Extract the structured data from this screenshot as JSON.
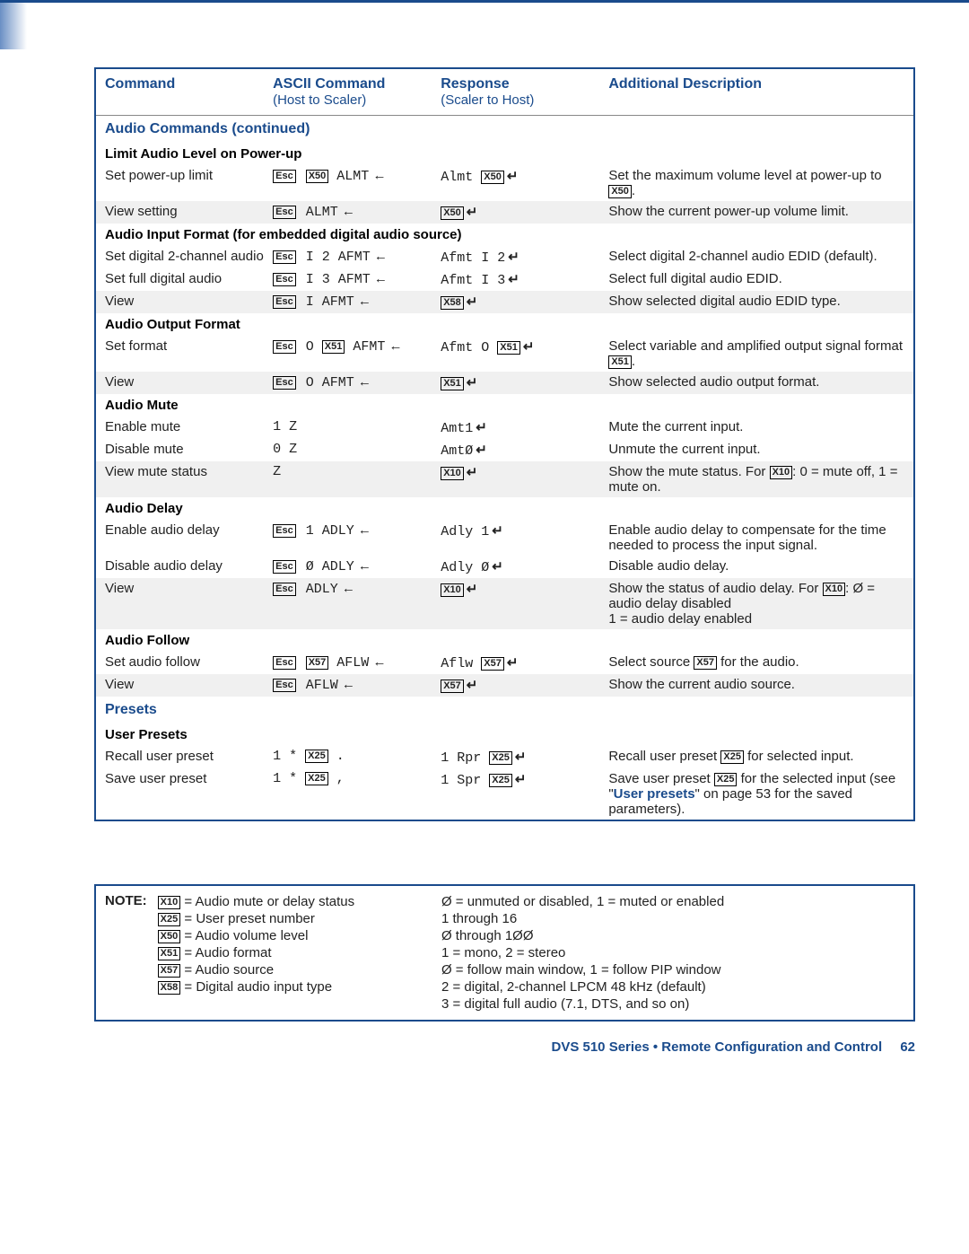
{
  "header": {
    "col1": "Command",
    "col2a": "ASCII Command",
    "col2b": "(Host to Scaler)",
    "col3a": "Response",
    "col3b": "(Scaler to Host)",
    "col4": "Additional Description"
  },
  "sections": {
    "audio_cont": "Audio Commands (continued)",
    "limit": "Limit Audio Level on Power-up",
    "aif": "Audio Input Format (for embedded digital audio source)",
    "aof": "Audio Output Format",
    "mute": "Audio Mute",
    "delay": "Audio Delay",
    "follow": "Audio Follow",
    "presets": "Presets",
    "user_presets": "User Presets"
  },
  "rows": {
    "set_pwr": {
      "cmd": "Set power-up limit",
      "d1": "Set the maximum volume level at power-up to ",
      "d2": "."
    },
    "view_set": {
      "cmd": "View setting",
      "d": "Show the current power-up volume limit."
    },
    "set2ch": {
      "cmd": "Set digital 2-channel audio",
      "d": "Select digital 2-channel audio EDID (default)."
    },
    "setfull": {
      "cmd": "Set full digital audio",
      "d": "Select full digital audio EDID."
    },
    "view_aif": {
      "cmd": "View",
      "d": "Show selected digital audio EDID type."
    },
    "setfmt": {
      "cmd": "Set format",
      "d1": "Select variable and amplified output signal format ",
      "d2": "."
    },
    "view_aof": {
      "cmd": "View",
      "d": "Show selected audio output format."
    },
    "en_mute": {
      "cmd": "Enable mute",
      "a": "1 Z",
      "d": "Mute the current input."
    },
    "dis_mute": {
      "cmd": "Disable mute",
      "a": "0 Z",
      "d": "Unmute the current input."
    },
    "view_mute": {
      "cmd": "View mute status",
      "a": "Z",
      "d1": "Show the mute status. For ",
      "d2": ": 0 = mute off, 1 = mute on."
    },
    "en_delay": {
      "cmd": "Enable audio delay",
      "d": "Enable audio delay to compensate for the time needed to process the input signal."
    },
    "dis_delay": {
      "cmd": "Disable audio delay",
      "d": "Disable audio delay."
    },
    "view_delay": {
      "cmd": "View",
      "d1": "Show the status of audio delay. For ",
      "d2": ": Ø = audio delay disabled",
      "d3": "1 = audio delay enabled"
    },
    "set_follow": {
      "cmd": "Set audio follow",
      "d1": "Select source ",
      "d2": " for the audio."
    },
    "view_follow": {
      "cmd": "View",
      "d": "Show the current audio source."
    },
    "recall": {
      "cmd": "Recall user preset",
      "d1": "Recall user preset ",
      "d2": " for selected input."
    },
    "save": {
      "cmd": "Save user preset",
      "d1": "Save user preset ",
      "d2": " for the selected input (see \"",
      "link": "User presets",
      "d3": "\" on page 53 for the saved parameters)."
    }
  },
  "note": {
    "label": "NOTE:",
    "left": {
      "x10": " = Audio mute or delay status",
      "x25": " = User preset number",
      "x50": " = Audio volume level",
      "x51": " = Audio format",
      "x57": " = Audio source",
      "x58": " = Digital audio input type"
    },
    "right": {
      "r1": "Ø = unmuted or disabled, 1 = muted or enabled",
      "r2": "1 through 16",
      "r3": "Ø through 1ØØ",
      "r4": "1 = mono, 2 = stereo",
      "r5": "Ø = follow main window, 1 = follow PIP window",
      "r6": "2 = digital, 2-channel LPCM 48 kHz (default)",
      "r7": "3 = digital full audio (7.1, DTS, and so on)"
    }
  },
  "footer": {
    "text": "DVS 510 Series • Remote Configuration and Control",
    "page": "62"
  },
  "xtags": {
    "x10": "X10",
    "x25": "X25",
    "x50": "X50",
    "x51": "X51",
    "x57": "X57",
    "x58": "X58",
    "esc": "Esc"
  },
  "cmds": {
    "almt": "ALMT",
    "afmt": "AFMT",
    "adly": "ADLY",
    "aflw": "AFLW",
    "Almt": "Almt",
    "Afmt": "Afmt",
    "Amt1": "Amt1",
    "Amt0": "AmtØ",
    "Adly": "Adly",
    "Aflw": "Aflw",
    "Rpr": "Rpr",
    "Spr": "Spr",
    "I2": "I 2",
    "I3": "I 3",
    "I": "I",
    "O": "O",
    "one": "1",
    "zero": "Ø",
    "1star": "1 *",
    "dot": ".",
    "comma": ","
  }
}
